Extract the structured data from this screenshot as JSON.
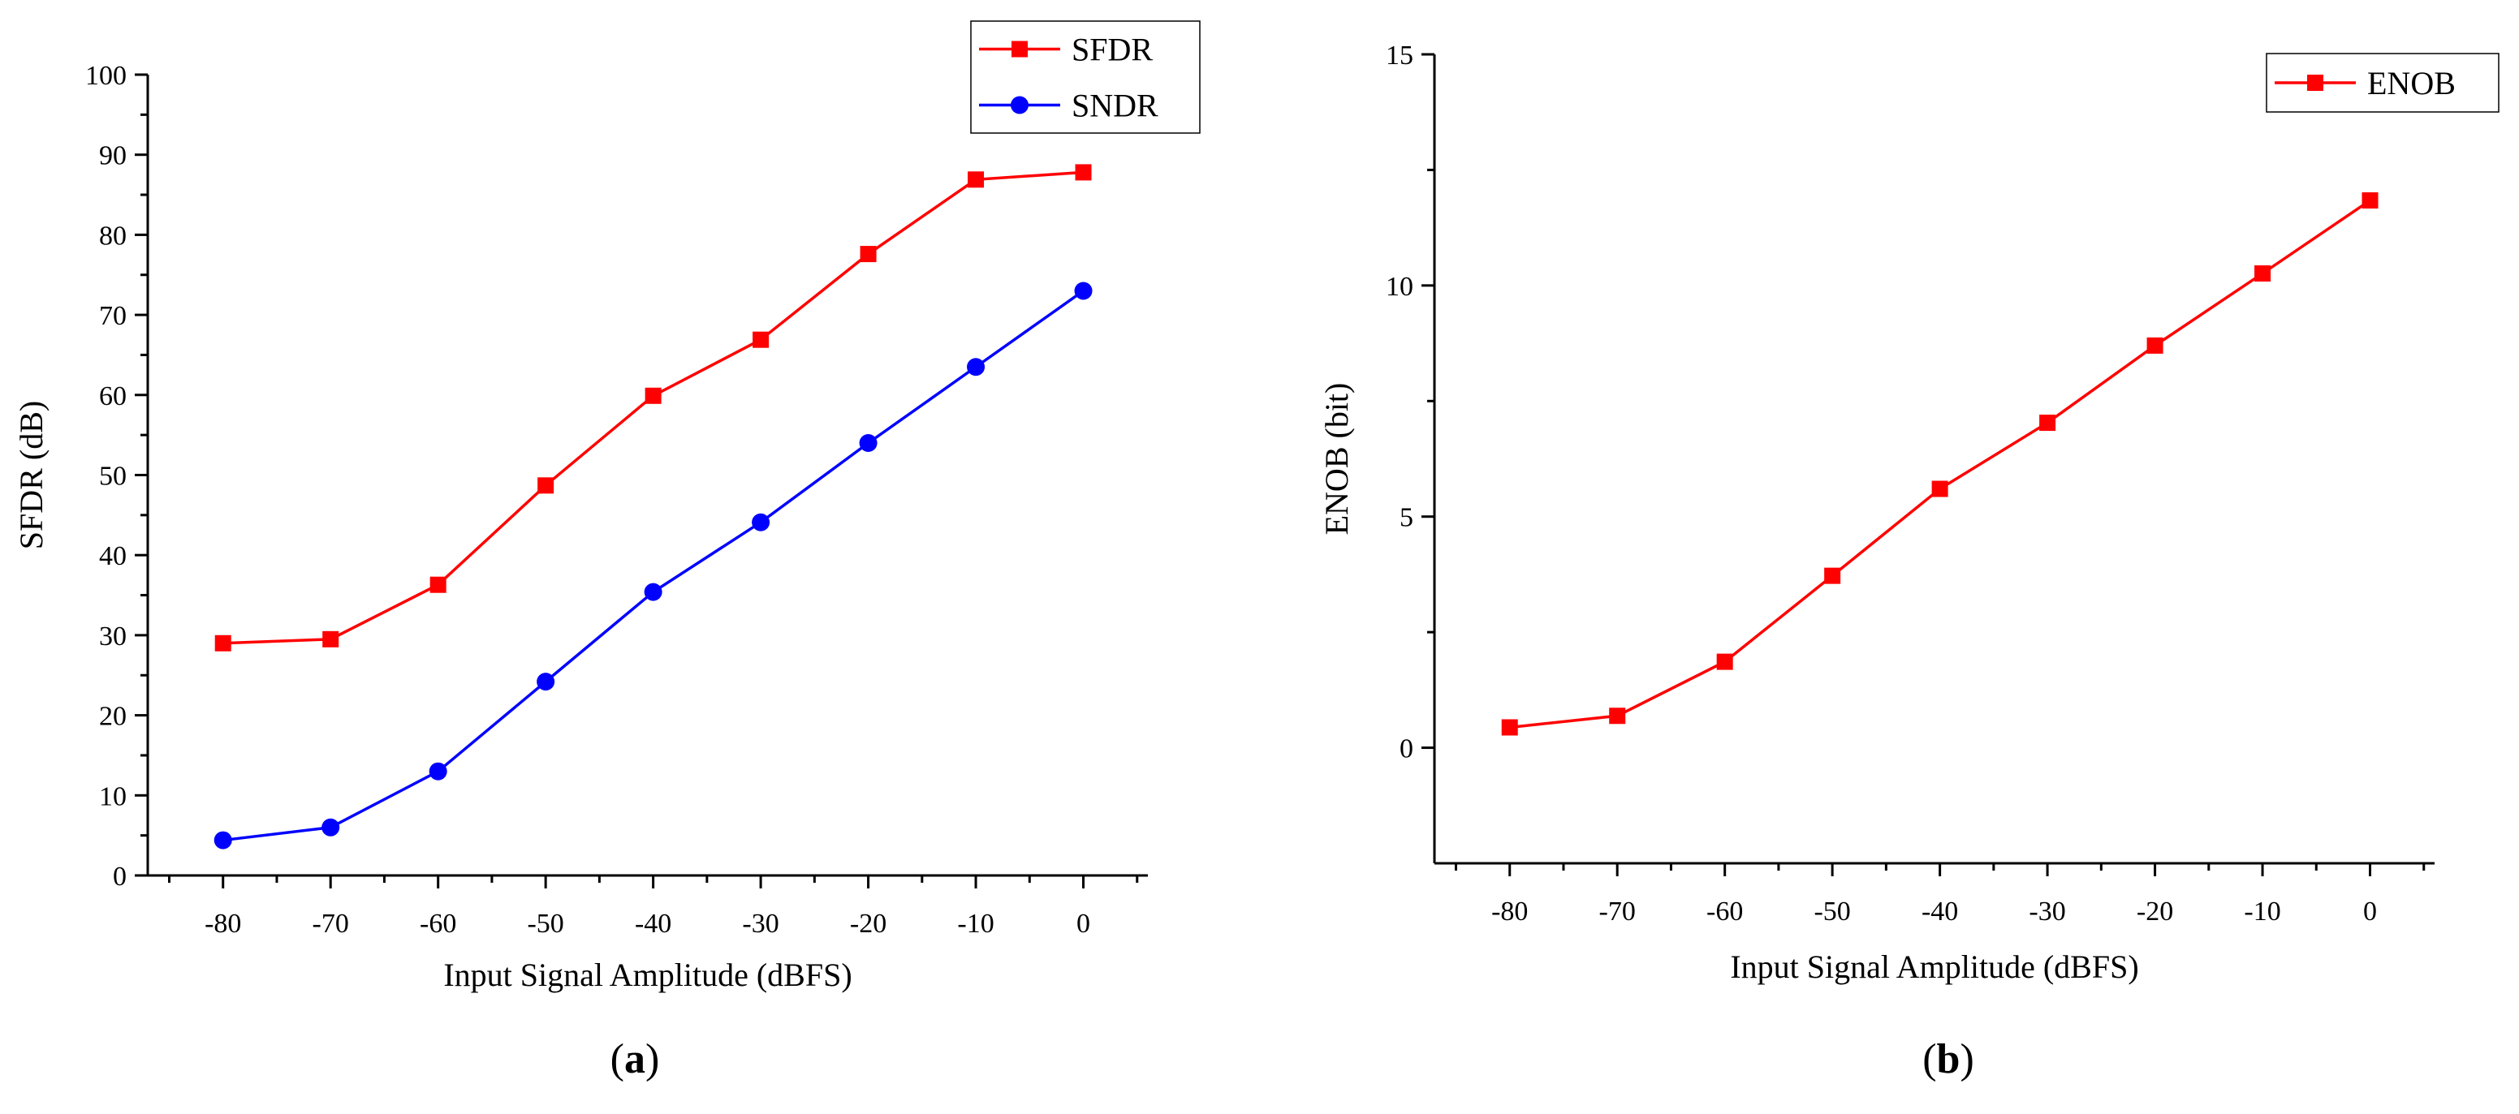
{
  "chart_data": [
    {
      "type": "line",
      "panel_label": "(a)",
      "panel_letter": "a",
      "xlabel": "Input Signal Amplitude (dBFS)",
      "ylabel": "SFDR (dB)",
      "x": [
        -80,
        -70,
        -60,
        -50,
        -40,
        -30,
        -20,
        -10,
        0
      ],
      "xlim": [
        -87,
        6
      ],
      "ylim": [
        0,
        100
      ],
      "xticks": [
        -80,
        -70,
        -60,
        -50,
        -40,
        -30,
        -20,
        -10,
        0
      ],
      "yticks": [
        0,
        10,
        20,
        30,
        40,
        50,
        60,
        70,
        80,
        90,
        100
      ],
      "grid": false,
      "legend_position": "top-right",
      "series": [
        {
          "name": "SFDR",
          "color": "#ff0000",
          "marker": "square",
          "values": [
            29.0,
            29.5,
            36.3,
            48.7,
            59.9,
            66.9,
            77.6,
            86.9,
            87.8
          ]
        },
        {
          "name": "SNDR",
          "color": "#0000ff",
          "marker": "circle",
          "values": [
            4.4,
            6.0,
            13.0,
            24.2,
            35.4,
            44.1,
            54.0,
            63.5,
            73.0
          ]
        }
      ]
    },
    {
      "type": "line",
      "panel_label": "(b)",
      "panel_letter": "b",
      "xlabel": "Input Signal Amplitude (dBFS)",
      "ylabel": "ENOB (bit)",
      "x": [
        -80,
        -70,
        -60,
        -50,
        -40,
        -30,
        -20,
        -10,
        0
      ],
      "xlim": [
        -87,
        6
      ],
      "ylim": [
        -2.5,
        15
      ],
      "xticks": [
        -80,
        -70,
        -60,
        -50,
        -40,
        -30,
        -20,
        -10,
        0
      ],
      "yticks": [
        0,
        5,
        10,
        15
      ],
      "grid": false,
      "legend_position": "top-right",
      "series": [
        {
          "name": "ENOB",
          "color": "#ff0000",
          "marker": "square",
          "values": [
            0.44,
            0.69,
            1.86,
            3.72,
            5.6,
            7.03,
            8.7,
            10.26,
            11.84
          ]
        }
      ]
    }
  ]
}
